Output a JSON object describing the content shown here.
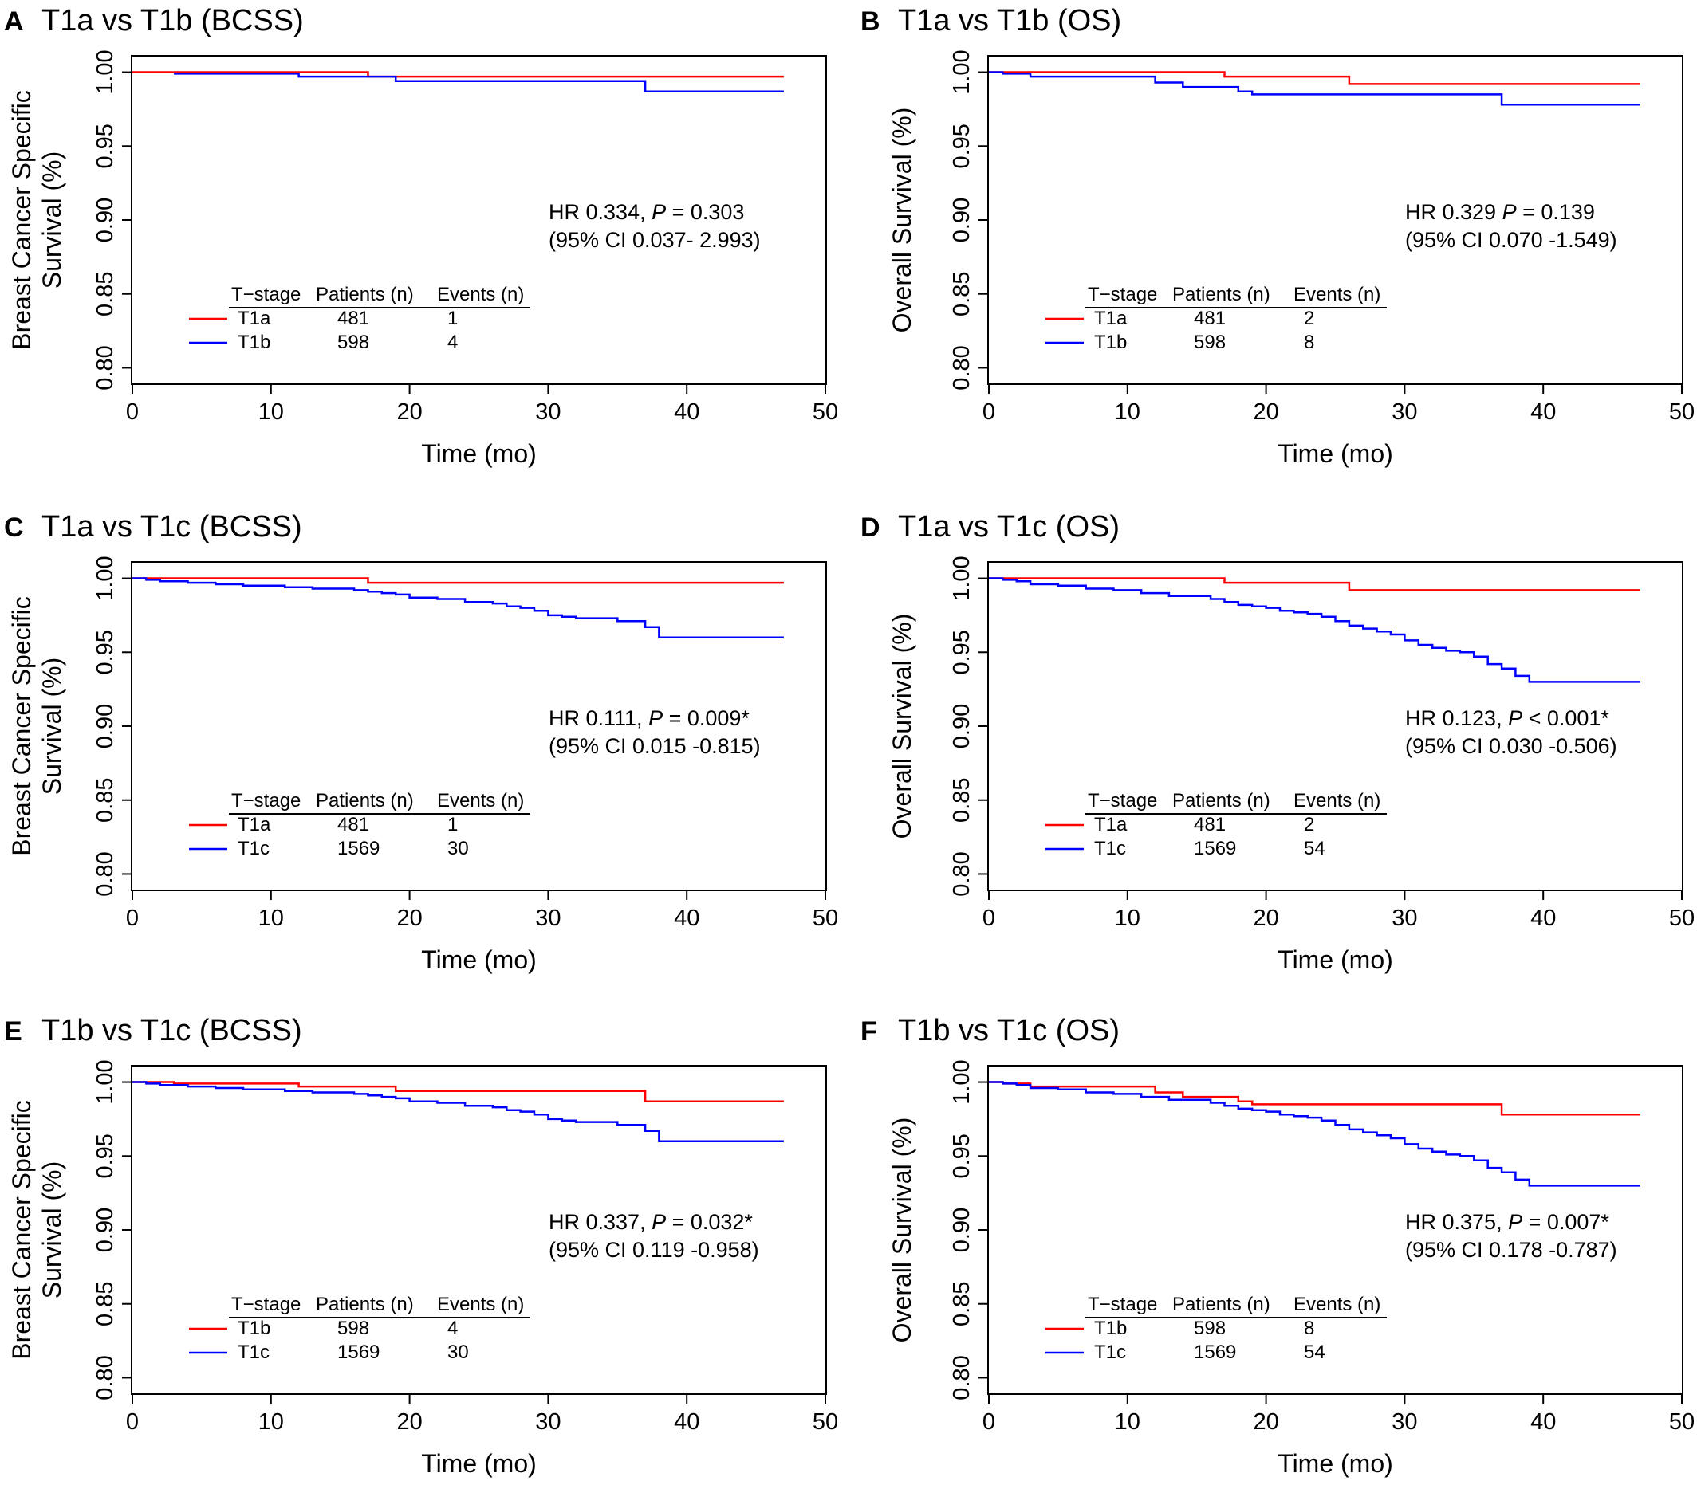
{
  "chart_data": [
    {
      "type": "line",
      "step": true,
      "panel_letter": "A",
      "title": "T1a vs T1b (BCSS)",
      "xlabel": "Time (mo)",
      "ylabel": [
        "Breast Cancer Specific",
        "Survival (%)"
      ],
      "xlim": [
        0,
        50
      ],
      "ylim": [
        0.79,
        1.01
      ],
      "xticks": [
        "0",
        "10",
        "20",
        "30",
        "40",
        "50"
      ],
      "yticks": [
        "0.80",
        "0.85",
        "0.90",
        "0.95",
        "1.00"
      ],
      "annotation": {
        "line1_pre": "HR 0.334, ",
        "line1_p": "P",
        "line1_post": " = 0.303",
        "line2": "(95% CI 0.037- 2.993)"
      },
      "legend_headers": [
        "T−stage",
        "Patients (n)",
        "Events (n)"
      ],
      "series": [
        {
          "name": "T1a",
          "color": "#ff0000",
          "patients": "481",
          "events": "1",
          "steps": [
            [
              0,
              1.0
            ],
            [
              17,
              0.997
            ],
            [
              47,
              0.997
            ]
          ]
        },
        {
          "name": "T1b",
          "color": "#0000ff",
          "patients": "598",
          "events": "4",
          "steps": [
            [
              3,
              0.999
            ],
            [
              12,
              0.997
            ],
            [
              19,
              0.994
            ],
            [
              37,
              0.987
            ],
            [
              47,
              0.987
            ]
          ]
        }
      ]
    },
    {
      "type": "line",
      "step": true,
      "panel_letter": "B",
      "title": "T1a vs T1b (OS)",
      "xlabel": "Time (mo)",
      "ylabel": [
        "Overall Survival (%)"
      ],
      "xlim": [
        0,
        50
      ],
      "ylim": [
        0.79,
        1.01
      ],
      "xticks": [
        "0",
        "10",
        "20",
        "30",
        "40",
        "50"
      ],
      "yticks": [
        "0.80",
        "0.85",
        "0.90",
        "0.95",
        "1.00"
      ],
      "annotation": {
        "line1_pre": "HR 0.329 ",
        "line1_p": "P",
        "line1_post": " = 0.139",
        "line2": "(95% CI 0.070 -1.549)"
      },
      "legend_headers": [
        "T−stage",
        "Patients (n)",
        "Events (n)"
      ],
      "series": [
        {
          "name": "T1a",
          "color": "#ff0000",
          "patients": "481",
          "events": "2",
          "steps": [
            [
              0,
              1.0
            ],
            [
              17,
              0.997
            ],
            [
              26,
              0.992
            ],
            [
              47,
              0.992
            ]
          ]
        },
        {
          "name": "T1b",
          "color": "#0000ff",
          "patients": "598",
          "events": "8",
          "steps": [
            [
              0,
              1.0
            ],
            [
              1,
              0.999
            ],
            [
              3,
              0.997
            ],
            [
              12,
              0.993
            ],
            [
              14,
              0.99
            ],
            [
              18,
              0.987
            ],
            [
              19,
              0.985
            ],
            [
              37,
              0.978
            ],
            [
              47,
              0.978
            ]
          ]
        }
      ]
    },
    {
      "type": "line",
      "step": true,
      "panel_letter": "C",
      "title": "T1a vs T1c (BCSS)",
      "xlabel": "Time (mo)",
      "ylabel": [
        "Breast Cancer Specific",
        "Survival (%)"
      ],
      "xlim": [
        0,
        50
      ],
      "ylim": [
        0.79,
        1.01
      ],
      "xticks": [
        "0",
        "10",
        "20",
        "30",
        "40",
        "50"
      ],
      "yticks": [
        "0.80",
        "0.85",
        "0.90",
        "0.95",
        "1.00"
      ],
      "annotation": {
        "line1_pre": "HR 0.111, ",
        "line1_p": "P",
        "line1_post": " = 0.009*",
        "line2": "(95% CI 0.015 -0.815)"
      },
      "legend_headers": [
        "T−stage",
        "Patients (n)",
        "Events (n)"
      ],
      "series": [
        {
          "name": "T1a",
          "color": "#ff0000",
          "patients": "481",
          "events": "1",
          "steps": [
            [
              0,
              1.0
            ],
            [
              17,
              0.997
            ],
            [
              47,
              0.997
            ]
          ]
        },
        {
          "name": "T1c",
          "color": "#0000ff",
          "patients": "1569",
          "events": "30",
          "steps": [
            [
              0,
              1.0
            ],
            [
              1,
              0.999
            ],
            [
              2,
              0.998
            ],
            [
              4,
              0.997
            ],
            [
              6,
              0.996
            ],
            [
              8,
              0.995
            ],
            [
              11,
              0.994
            ],
            [
              13,
              0.993
            ],
            [
              16,
              0.992
            ],
            [
              17,
              0.991
            ],
            [
              18,
              0.99
            ],
            [
              19,
              0.989
            ],
            [
              20,
              0.987
            ],
            [
              22,
              0.986
            ],
            [
              24,
              0.984
            ],
            [
              26,
              0.983
            ],
            [
              27,
              0.981
            ],
            [
              28,
              0.98
            ],
            [
              29,
              0.978
            ],
            [
              30,
              0.975
            ],
            [
              31,
              0.974
            ],
            [
              32,
              0.973
            ],
            [
              35,
              0.971
            ],
            [
              37,
              0.967
            ],
            [
              38,
              0.96
            ],
            [
              47,
              0.96
            ]
          ]
        }
      ]
    },
    {
      "type": "line",
      "step": true,
      "panel_letter": "D",
      "title": "T1a vs T1c (OS)",
      "xlabel": "Time (mo)",
      "ylabel": [
        "Overall Survival (%)"
      ],
      "xlim": [
        0,
        50
      ],
      "ylim": [
        0.79,
        1.01
      ],
      "xticks": [
        "0",
        "10",
        "20",
        "30",
        "40",
        "50"
      ],
      "yticks": [
        "0.80",
        "0.85",
        "0.90",
        "0.95",
        "1.00"
      ],
      "annotation": {
        "line1_pre": "HR 0.123, ",
        "line1_p": "P",
        "line1_post": " < 0.001*",
        "line2": "(95% CI 0.030 -0.506)"
      },
      "legend_headers": [
        "T−stage",
        "Patients (n)",
        "Events (n)"
      ],
      "series": [
        {
          "name": "T1a",
          "color": "#ff0000",
          "patients": "481",
          "events": "2",
          "steps": [
            [
              0,
              1.0
            ],
            [
              17,
              0.997
            ],
            [
              26,
              0.992
            ],
            [
              47,
              0.992
            ]
          ]
        },
        {
          "name": "T1c",
          "color": "#0000ff",
          "patients": "1569",
          "events": "54",
          "steps": [
            [
              0,
              1.0
            ],
            [
              1,
              0.999
            ],
            [
              2,
              0.998
            ],
            [
              3,
              0.996
            ],
            [
              5,
              0.995
            ],
            [
              7,
              0.993
            ],
            [
              9,
              0.992
            ],
            [
              11,
              0.99
            ],
            [
              13,
              0.988
            ],
            [
              16,
              0.986
            ],
            [
              17,
              0.984
            ],
            [
              18,
              0.982
            ],
            [
              19,
              0.981
            ],
            [
              20,
              0.98
            ],
            [
              21,
              0.978
            ],
            [
              22,
              0.977
            ],
            [
              23,
              0.976
            ],
            [
              24,
              0.974
            ],
            [
              25,
              0.971
            ],
            [
              26,
              0.968
            ],
            [
              27,
              0.966
            ],
            [
              28,
              0.964
            ],
            [
              29,
              0.962
            ],
            [
              30,
              0.958
            ],
            [
              31,
              0.955
            ],
            [
              32,
              0.953
            ],
            [
              33,
              0.951
            ],
            [
              34,
              0.95
            ],
            [
              35,
              0.947
            ],
            [
              36,
              0.942
            ],
            [
              37,
              0.939
            ],
            [
              38,
              0.934
            ],
            [
              39,
              0.93
            ],
            [
              47,
              0.93
            ]
          ]
        }
      ]
    },
    {
      "type": "line",
      "step": true,
      "panel_letter": "E",
      "title": "T1b vs T1c (BCSS)",
      "xlabel": "Time (mo)",
      "ylabel": [
        "Breast Cancer Specific",
        "Survival (%)"
      ],
      "xlim": [
        0,
        50
      ],
      "ylim": [
        0.79,
        1.01
      ],
      "xticks": [
        "0",
        "10",
        "20",
        "30",
        "40",
        "50"
      ],
      "yticks": [
        "0.80",
        "0.85",
        "0.90",
        "0.95",
        "1.00"
      ],
      "annotation": {
        "line1_pre": "HR 0.337, ",
        "line1_p": "P",
        "line1_post": " = 0.032*",
        "line2": "(95% CI 0.119 -0.958)"
      },
      "legend_headers": [
        "T−stage",
        "Patients (n)",
        "Events (n)"
      ],
      "series": [
        {
          "name": "T1b",
          "color": "#ff0000",
          "patients": "598",
          "events": "4",
          "steps": [
            [
              0,
              1.0
            ],
            [
              3,
              0.999
            ],
            [
              12,
              0.997
            ],
            [
              19,
              0.994
            ],
            [
              37,
              0.987
            ],
            [
              47,
              0.987
            ]
          ]
        },
        {
          "name": "T1c",
          "color": "#0000ff",
          "patients": "1569",
          "events": "30",
          "steps": [
            [
              0,
              1.0
            ],
            [
              1,
              0.999
            ],
            [
              2,
              0.998
            ],
            [
              4,
              0.997
            ],
            [
              6,
              0.996
            ],
            [
              8,
              0.995
            ],
            [
              11,
              0.994
            ],
            [
              13,
              0.993
            ],
            [
              16,
              0.992
            ],
            [
              17,
              0.991
            ],
            [
              18,
              0.99
            ],
            [
              19,
              0.989
            ],
            [
              20,
              0.987
            ],
            [
              22,
              0.986
            ],
            [
              24,
              0.984
            ],
            [
              26,
              0.983
            ],
            [
              27,
              0.981
            ],
            [
              28,
              0.98
            ],
            [
              29,
              0.978
            ],
            [
              30,
              0.975
            ],
            [
              31,
              0.974
            ],
            [
              32,
              0.973
            ],
            [
              35,
              0.971
            ],
            [
              37,
              0.967
            ],
            [
              38,
              0.96
            ],
            [
              47,
              0.96
            ]
          ]
        }
      ]
    },
    {
      "type": "line",
      "step": true,
      "panel_letter": "F",
      "title": "T1b vs T1c (OS)",
      "xlabel": "Time (mo)",
      "ylabel": [
        "Overall Survival (%)"
      ],
      "xlim": [
        0,
        50
      ],
      "ylim": [
        0.79,
        1.01
      ],
      "xticks": [
        "0",
        "10",
        "20",
        "30",
        "40",
        "50"
      ],
      "yticks": [
        "0.80",
        "0.85",
        "0.90",
        "0.95",
        "1.00"
      ],
      "annotation": {
        "line1_pre": "HR 0.375, ",
        "line1_p": "P",
        "line1_post": " = 0.007*",
        "line2": "(95% CI 0.178 -0.787)"
      },
      "legend_headers": [
        "T−stage",
        "Patients (n)",
        "Events (n)"
      ],
      "series": [
        {
          "name": "T1b",
          "color": "#ff0000",
          "patients": "598",
          "events": "8",
          "steps": [
            [
              0,
              1.0
            ],
            [
              1,
              0.999
            ],
            [
              3,
              0.997
            ],
            [
              12,
              0.993
            ],
            [
              14,
              0.99
            ],
            [
              18,
              0.987
            ],
            [
              19,
              0.985
            ],
            [
              37,
              0.978
            ],
            [
              47,
              0.978
            ]
          ]
        },
        {
          "name": "T1c",
          "color": "#0000ff",
          "patients": "1569",
          "events": "54",
          "steps": [
            [
              0,
              1.0
            ],
            [
              1,
              0.999
            ],
            [
              2,
              0.998
            ],
            [
              3,
              0.996
            ],
            [
              5,
              0.995
            ],
            [
              7,
              0.993
            ],
            [
              9,
              0.992
            ],
            [
              11,
              0.99
            ],
            [
              13,
              0.988
            ],
            [
              16,
              0.986
            ],
            [
              17,
              0.984
            ],
            [
              18,
              0.982
            ],
            [
              19,
              0.981
            ],
            [
              20,
              0.98
            ],
            [
              21,
              0.978
            ],
            [
              22,
              0.977
            ],
            [
              23,
              0.976
            ],
            [
              24,
              0.974
            ],
            [
              25,
              0.971
            ],
            [
              26,
              0.968
            ],
            [
              27,
              0.966
            ],
            [
              28,
              0.964
            ],
            [
              29,
              0.962
            ],
            [
              30,
              0.958
            ],
            [
              31,
              0.955
            ],
            [
              32,
              0.953
            ],
            [
              33,
              0.951
            ],
            [
              34,
              0.95
            ],
            [
              35,
              0.947
            ],
            [
              36,
              0.942
            ],
            [
              37,
              0.939
            ],
            [
              38,
              0.934
            ],
            [
              39,
              0.93
            ],
            [
              47,
              0.93
            ]
          ]
        }
      ]
    }
  ]
}
